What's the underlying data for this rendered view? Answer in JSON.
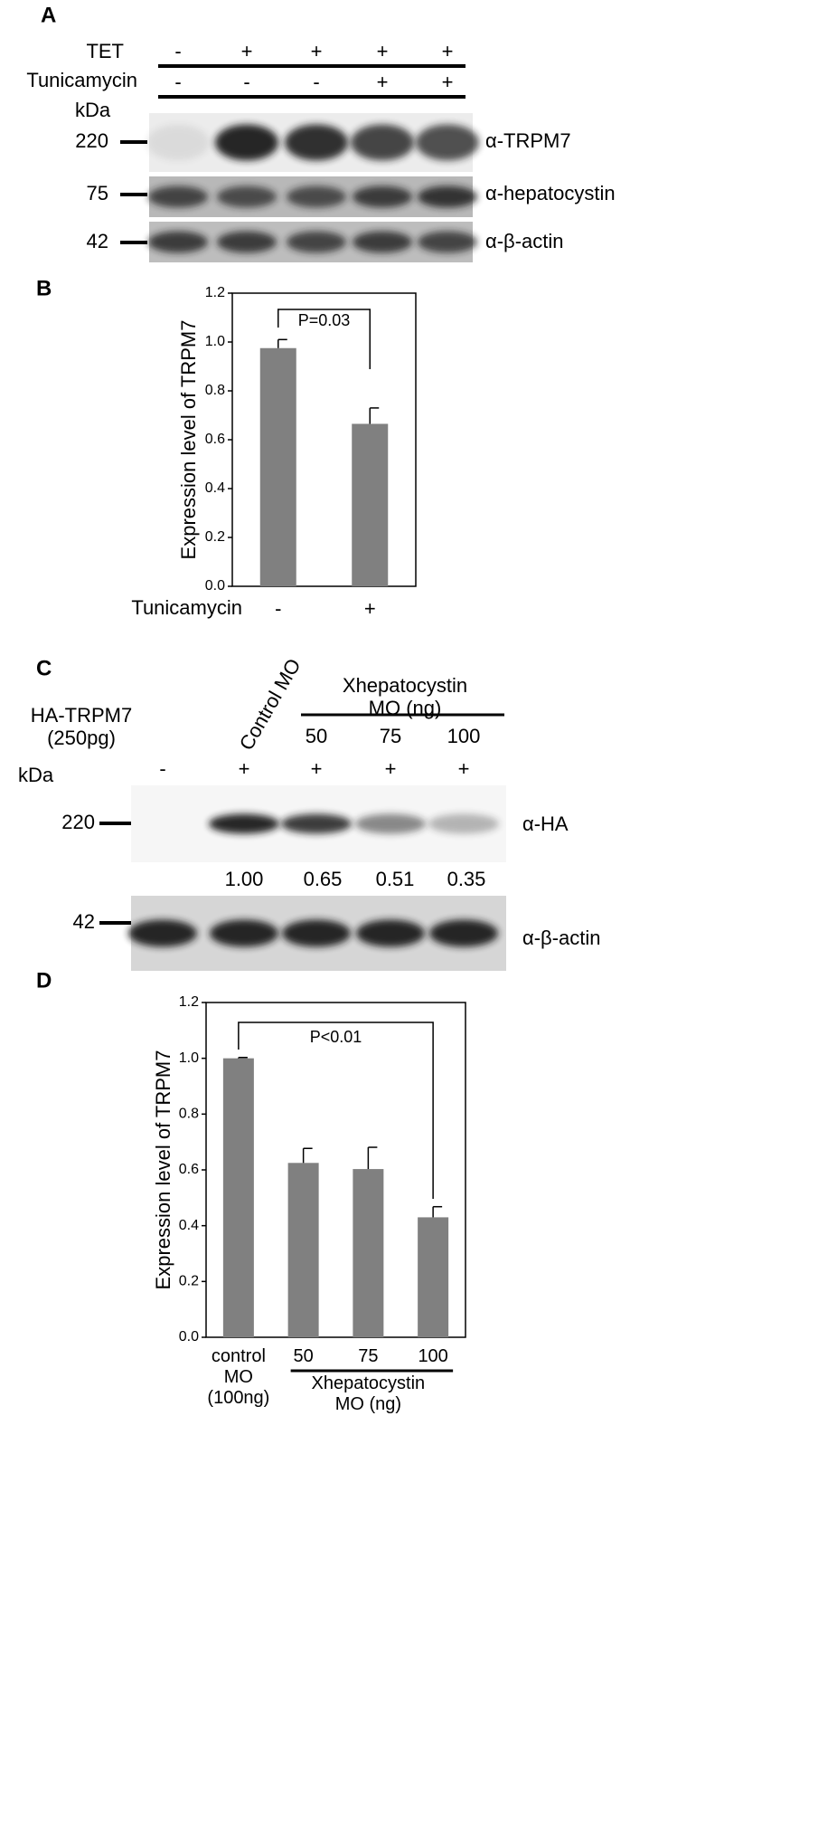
{
  "panel_a": {
    "label": "A",
    "rows": [
      {
        "name": "TET",
        "signs": [
          "-",
          "+",
          "+",
          "+",
          "+"
        ]
      },
      {
        "name": "Tunicamycin",
        "signs": [
          "-",
          "-",
          "-",
          "+",
          "+"
        ]
      }
    ],
    "unit": "kDa",
    "markers": [
      "220",
      "75",
      "42"
    ],
    "antibodies": [
      "α-TRPM7",
      "α-hepatocystin",
      "α-β-actin"
    ]
  },
  "panel_c": {
    "label": "C",
    "construct": "HA-TRPM7 (250pg)",
    "control": "Control MO",
    "group": "Xhepatocystin MO (ng)",
    "doses": [
      "50",
      "75",
      "100"
    ],
    "signs": [
      "-",
      "+",
      "+",
      "+",
      "+"
    ],
    "unit": "kDa",
    "markers": [
      "220",
      "42"
    ],
    "antibodies": [
      "α-HA",
      "α-β-actin"
    ],
    "quantification": [
      "1.00",
      "0.65",
      "0.51",
      "0.35"
    ]
  },
  "chart_data": [
    {
      "type": "bar",
      "panel_label": "B",
      "y_label": "Expression level of TRPM7",
      "x_label": "Tunicamycin",
      "categories": [
        "-",
        "+"
      ],
      "values": [
        0.975,
        0.665
      ],
      "errors": [
        0.035,
        0.065
      ],
      "color": "#808080",
      "ylim": [
        0,
        1.2
      ],
      "yticks": [
        {
          "value": 0,
          "label": "0.0"
        },
        0.2,
        0.4,
        0.6,
        0.8,
        {
          "value": 1,
          "label": "1.0"
        },
        1.2
      ],
      "annotation": "P=0.03"
    },
    {
      "type": "bar",
      "panel_label": "D",
      "y_label": "Expression level of TRPM7",
      "categories": [
        "control MO (100ng)",
        "50",
        "75",
        "100"
      ],
      "group_label": "Xhepatocystin MO (ng)",
      "values": [
        1.0,
        0.625,
        0.603,
        0.43
      ],
      "errors": [
        0.003,
        0.052,
        0.078,
        0.038
      ],
      "color": "#808080",
      "ylim": [
        0,
        1.2
      ],
      "yticks": [
        {
          "value": 0,
          "label": "0.0"
        },
        0.2,
        0.4,
        0.6,
        0.8,
        {
          "value": 1,
          "label": "1.0"
        },
        1.2
      ],
      "annotation": "P<0.01"
    }
  ]
}
